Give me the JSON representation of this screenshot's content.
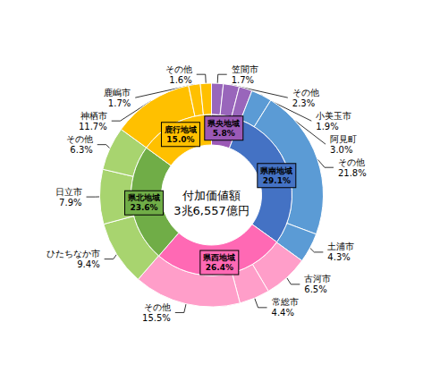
{
  "chart_data": [
    {
      "type": "pie",
      "title": "付加価値額",
      "subtitle": "3兆6,557億円",
      "categories": [
        "笠間市",
        "その他",
        "小美玉市",
        "阿見町",
        "その他",
        "土浦市",
        "古河市",
        "常総市",
        "その他",
        "ひたちなか市",
        "日立市",
        "その他",
        "神栖市",
        "鹿嶋市",
        "その他"
      ],
      "values": [
        1.7,
        2.3,
        1.9,
        3.0,
        21.8,
        4.3,
        6.5,
        4.4,
        15.5,
        9.4,
        7.9,
        6.3,
        11.7,
        1.7,
        1.6
      ],
      "value_labels": [
        "1.7%",
        "2.3%",
        "1.9%",
        "3.0%",
        "21.8%",
        "4.3%",
        "6.5%",
        "4.4%",
        "15.5%",
        "9.4%",
        "7.9%",
        "6.3%",
        "11.7%",
        "1.7%",
        "1.6%"
      ],
      "colors": [
        "#9966BB",
        "#9966BB",
        "#9966BB",
        "#5B9BD5",
        "#5B9BD5",
        "#5B9BD5",
        "#FF9EC9",
        "#FF9EC9",
        "#FF9EC9",
        "#A8D46F",
        "#A8D46F",
        "#A8D46F",
        "#FFC000",
        "#FFC000",
        "#FFC000"
      ],
      "data_labels": true
    },
    {
      "type": "pie",
      "categories": [
        "県央地域",
        "県南地域",
        "県西地域",
        "県北地域",
        "鹿行地域"
      ],
      "values": [
        5.8,
        29.1,
        26.4,
        23.6,
        15.0
      ],
      "value_labels": [
        "5.8%",
        "29.1%",
        "26.4%",
        "23.6%",
        "15.0%"
      ],
      "colors": [
        "#9B59B6",
        "#4472C4",
        "#FF69B4",
        "#70AD47",
        "#FFC000"
      ],
      "data_labels": true
    }
  ]
}
